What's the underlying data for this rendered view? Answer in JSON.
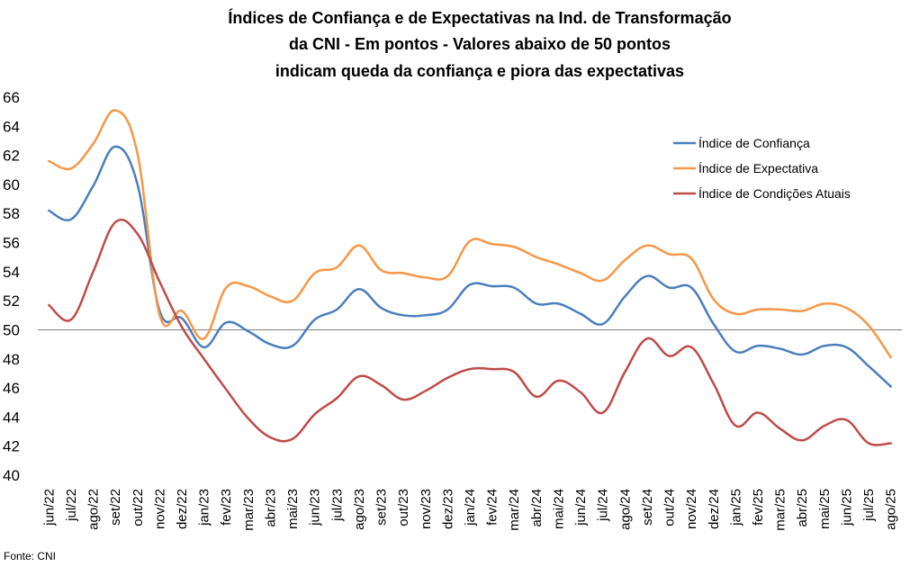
{
  "chart_data": {
    "type": "line",
    "title_lines": [
      "Índices de Confiança e de Expectativas na Ind. de Transformação",
      "da CNI - Em pontos - Valores abaixo de 50 pontos",
      "indicam queda da confiança e piora das expectativas"
    ],
    "source": "Fonte: CNI",
    "categories": [
      "jun/22",
      "jul/22",
      "ago/22",
      "set/22",
      "out/22",
      "nov/22",
      "dez/22",
      "jan/23",
      "fev/23",
      "mar/23",
      "abr/23",
      "mai/23",
      "jun/23",
      "jul/23",
      "ago/23",
      "set/23",
      "out/23",
      "nov/23",
      "dez/23",
      "jan/24",
      "fev/24",
      "mar/24",
      "abr/24",
      "mai/24",
      "jun/24",
      "jul/24",
      "ago/24",
      "set/24",
      "out/24",
      "nov/24",
      "dez/24",
      "jan/25",
      "fev/25",
      "mar/25",
      "abr/25",
      "mai/25",
      "jun/25",
      "jul/25",
      "ago/25"
    ],
    "ylim": [
      40,
      66
    ],
    "yticks": [
      40,
      42,
      44,
      46,
      48,
      50,
      52,
      54,
      56,
      58,
      60,
      62,
      64,
      66
    ],
    "reference_line": 50,
    "grid": false,
    "legend_position": "top-right",
    "series": [
      {
        "name": "Índice de Confiança",
        "color": "#4a7ebb",
        "values": [
          58.2,
          57.6,
          59.9,
          62.6,
          60.0,
          51.3,
          50.8,
          48.8,
          50.5,
          49.9,
          49.0,
          48.9,
          50.7,
          51.4,
          52.8,
          51.5,
          51.0,
          51.0,
          51.4,
          53.1,
          53.0,
          52.9,
          51.8,
          51.8,
          51.1,
          50.4,
          52.3,
          53.7,
          52.9,
          52.9,
          50.4,
          48.5,
          48.9,
          48.7,
          48.3,
          48.9,
          48.8,
          47.5,
          46.1
        ]
      },
      {
        "name": "Índice de Expectativa",
        "color": "#f79646",
        "values": [
          61.6,
          61.1,
          62.8,
          65.1,
          62.1,
          51.0,
          51.3,
          49.4,
          52.9,
          53.0,
          52.3,
          52.0,
          53.9,
          54.3,
          55.8,
          54.1,
          53.9,
          53.6,
          53.7,
          56.1,
          55.9,
          55.7,
          55.0,
          54.5,
          53.9,
          53.4,
          54.8,
          55.8,
          55.2,
          54.9,
          52.1,
          51.1,
          51.4,
          51.4,
          51.3,
          51.8,
          51.5,
          50.3,
          48.1
        ]
      },
      {
        "name": "Índice de Condições Atuais",
        "color": "#be4b48",
        "values": [
          51.7,
          50.7,
          54.0,
          57.4,
          56.6,
          53.3,
          50.2,
          48.0,
          45.9,
          43.9,
          42.6,
          42.5,
          44.2,
          45.3,
          46.8,
          46.2,
          45.2,
          45.8,
          46.7,
          47.3,
          47.3,
          47.1,
          45.4,
          46.5,
          45.7,
          44.3,
          47.1,
          49.4,
          48.2,
          48.8,
          46.3,
          43.4,
          44.3,
          43.2,
          42.4,
          43.4,
          43.8,
          42.2,
          42.2
        ]
      }
    ]
  }
}
